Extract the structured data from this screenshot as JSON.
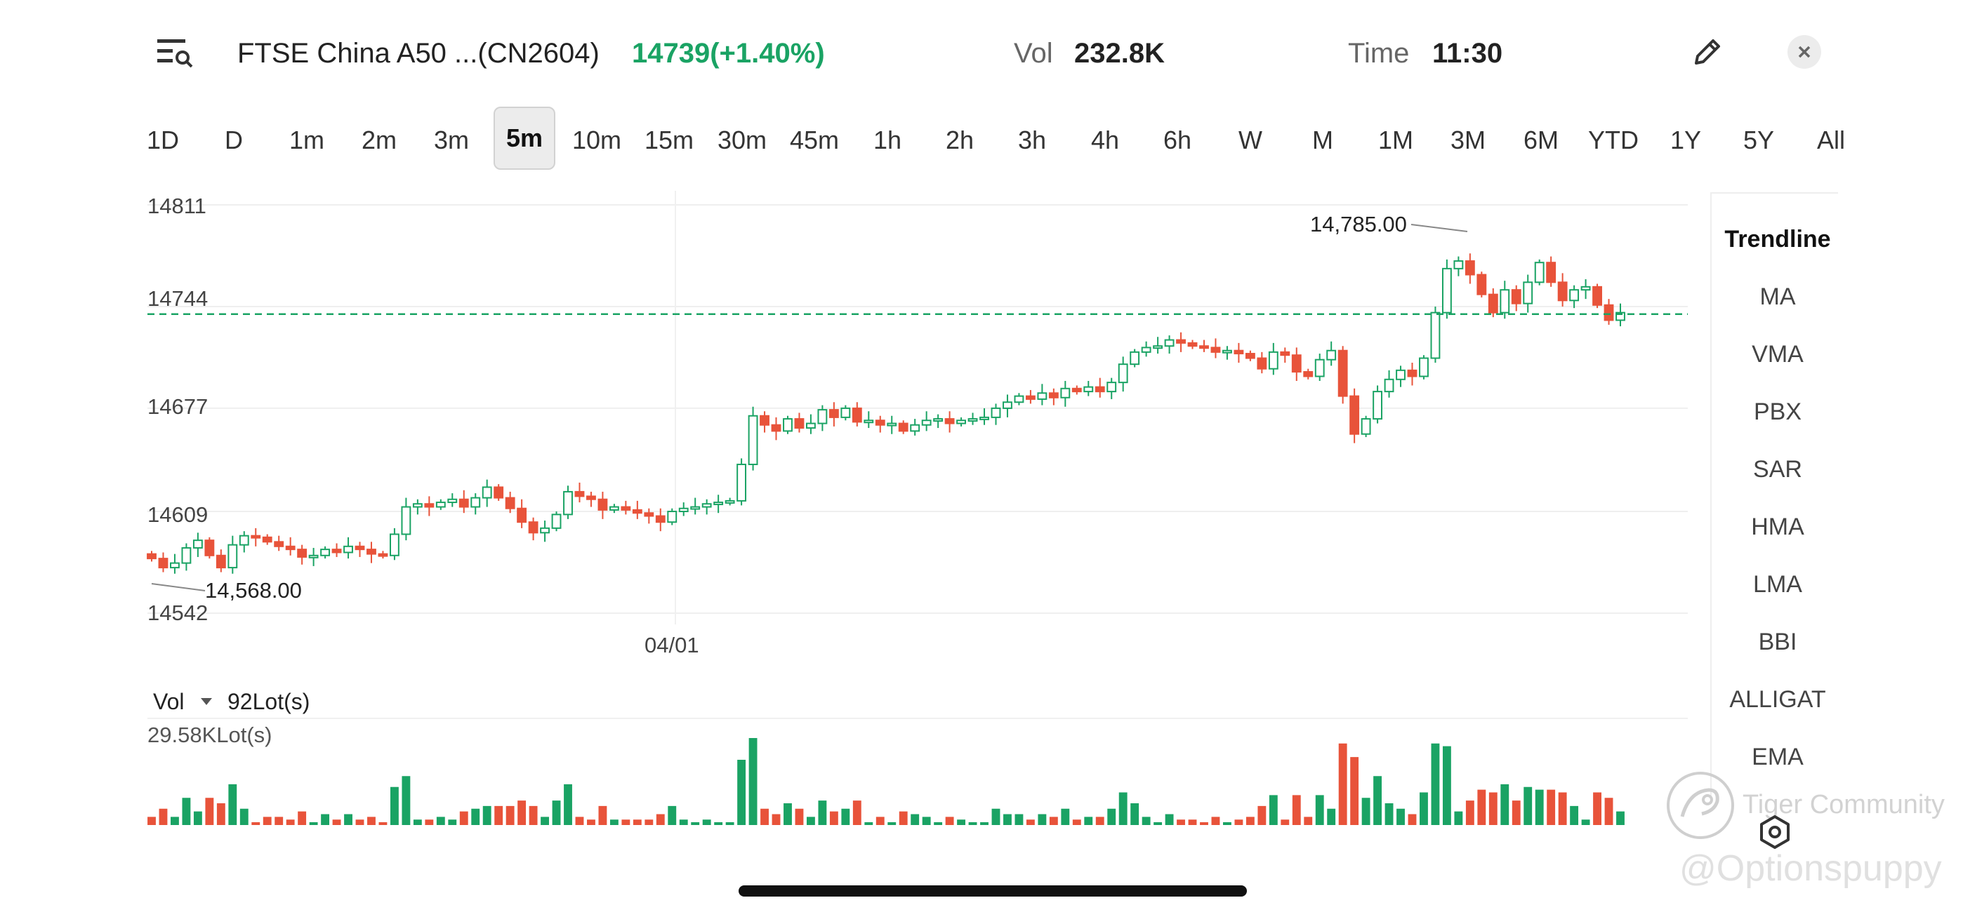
{
  "header": {
    "title": "FTSE China A50 ...(CN2604)",
    "price_change": "14739(+1.40%)",
    "vol_label": "Vol",
    "vol_value": "232.8K",
    "time_label": "Time",
    "time_value": "11:30"
  },
  "timeframes": [
    "1D",
    "D",
    "1m",
    "2m",
    "3m",
    "5m",
    "10m",
    "15m",
    "30m",
    "45m",
    "1h",
    "2h",
    "3h",
    "4h",
    "6h",
    "W",
    "M",
    "1M",
    "3M",
    "6M",
    "YTD",
    "1Y",
    "5Y",
    "All"
  ],
  "active_timeframe": "5m",
  "indicators": [
    "Trendline",
    "MA",
    "VMA",
    "PBX",
    "SAR",
    "HMA",
    "LMA",
    "BBI",
    "ALLIGAT",
    "EMA"
  ],
  "volume_panel": {
    "label": "Vol",
    "current": "92Lot(s)",
    "max_label": "29.58KLot(s)"
  },
  "watermark": {
    "brand": "Tiger Community",
    "handle": "@Optionspuppy"
  },
  "colors": {
    "up": "#1aa364",
    "down": "#e8533a",
    "dash": "#1aa364"
  },
  "chart_data": {
    "type": "candlestick",
    "y_ticks": [
      "14811",
      "14744",
      "14677",
      "14609",
      "14542"
    ],
    "ylim": [
      14542,
      14811
    ],
    "x_tick_labels": [
      "04/01"
    ],
    "high_label": "14,785.00",
    "low_label": "14,568.00",
    "current_price_line": 14739,
    "candles_close": [
      14578,
      14572,
      14575,
      14585,
      14590,
      14580,
      14572,
      14587,
      14593,
      14592,
      14589,
      14586,
      14584,
      14579,
      14580,
      14584,
      14582,
      14586,
      14584,
      14581,
      14580,
      14594,
      14612,
      14614,
      14612,
      14615,
      14617,
      14612,
      14618,
      14625,
      14618,
      14611,
      14602,
      14595,
      14598,
      14607,
      14622,
      14619,
      14617,
      14610,
      14612,
      14610,
      14608,
      14606,
      14602,
      14609,
      14611,
      14612,
      14614,
      14615,
      14616,
      14640,
      14672,
      14666,
      14662,
      14670,
      14664,
      14667,
      14676,
      14671,
      14677,
      14668,
      14669,
      14666,
      14667,
      14662,
      14666,
      14669,
      14670,
      14667,
      14669,
      14670,
      14671,
      14677,
      14681,
      14685,
      14683,
      14687,
      14684,
      14690,
      14688,
      14691,
      14688,
      14694,
      14706,
      14714,
      14717,
      14718,
      14722,
      14720,
      14718,
      14717,
      14714,
      14715,
      14713,
      14710,
      14703,
      14714,
      14712,
      14701,
      14698,
      14709,
      14715,
      14685,
      14660,
      14670,
      14688,
      14696,
      14702,
      14698,
      14710,
      14740,
      14769,
      14774,
      14765,
      14752,
      14740,
      14755,
      14746,
      14760,
      14773,
      14760,
      14748,
      14755,
      14757,
      14745,
      14735,
      14740
    ]
  }
}
